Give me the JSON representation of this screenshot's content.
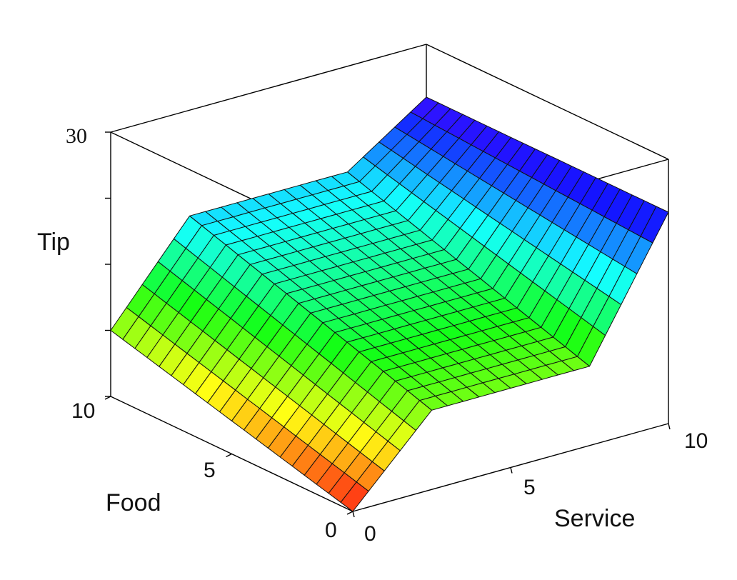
{
  "chart_data": {
    "type": "surface",
    "x_label": "Service",
    "y_label": "Food",
    "z_label": "Tip",
    "x_ticks": [
      "0",
      "5",
      "10"
    ],
    "y_ticks": [
      "0",
      "5",
      "10"
    ],
    "z_ticks": [
      "10",
      "30"
    ],
    "x_range": [
      0,
      10
    ],
    "y_range": [
      0,
      10
    ],
    "z_range": [
      10,
      30
    ],
    "grid_resolution": 21,
    "surface_description": "Tip as a function of Service and Food: rises with service, plateau in the middle, rises again at high service",
    "service_breakpoints": [
      0,
      2.5,
      7.5,
      10
    ],
    "tip_at_breakpoints_food0": [
      10,
      16,
      16,
      26
    ],
    "tip_at_breakpoints_food10": [
      15,
      22,
      22,
      26
    ],
    "colormap": "hsv"
  }
}
